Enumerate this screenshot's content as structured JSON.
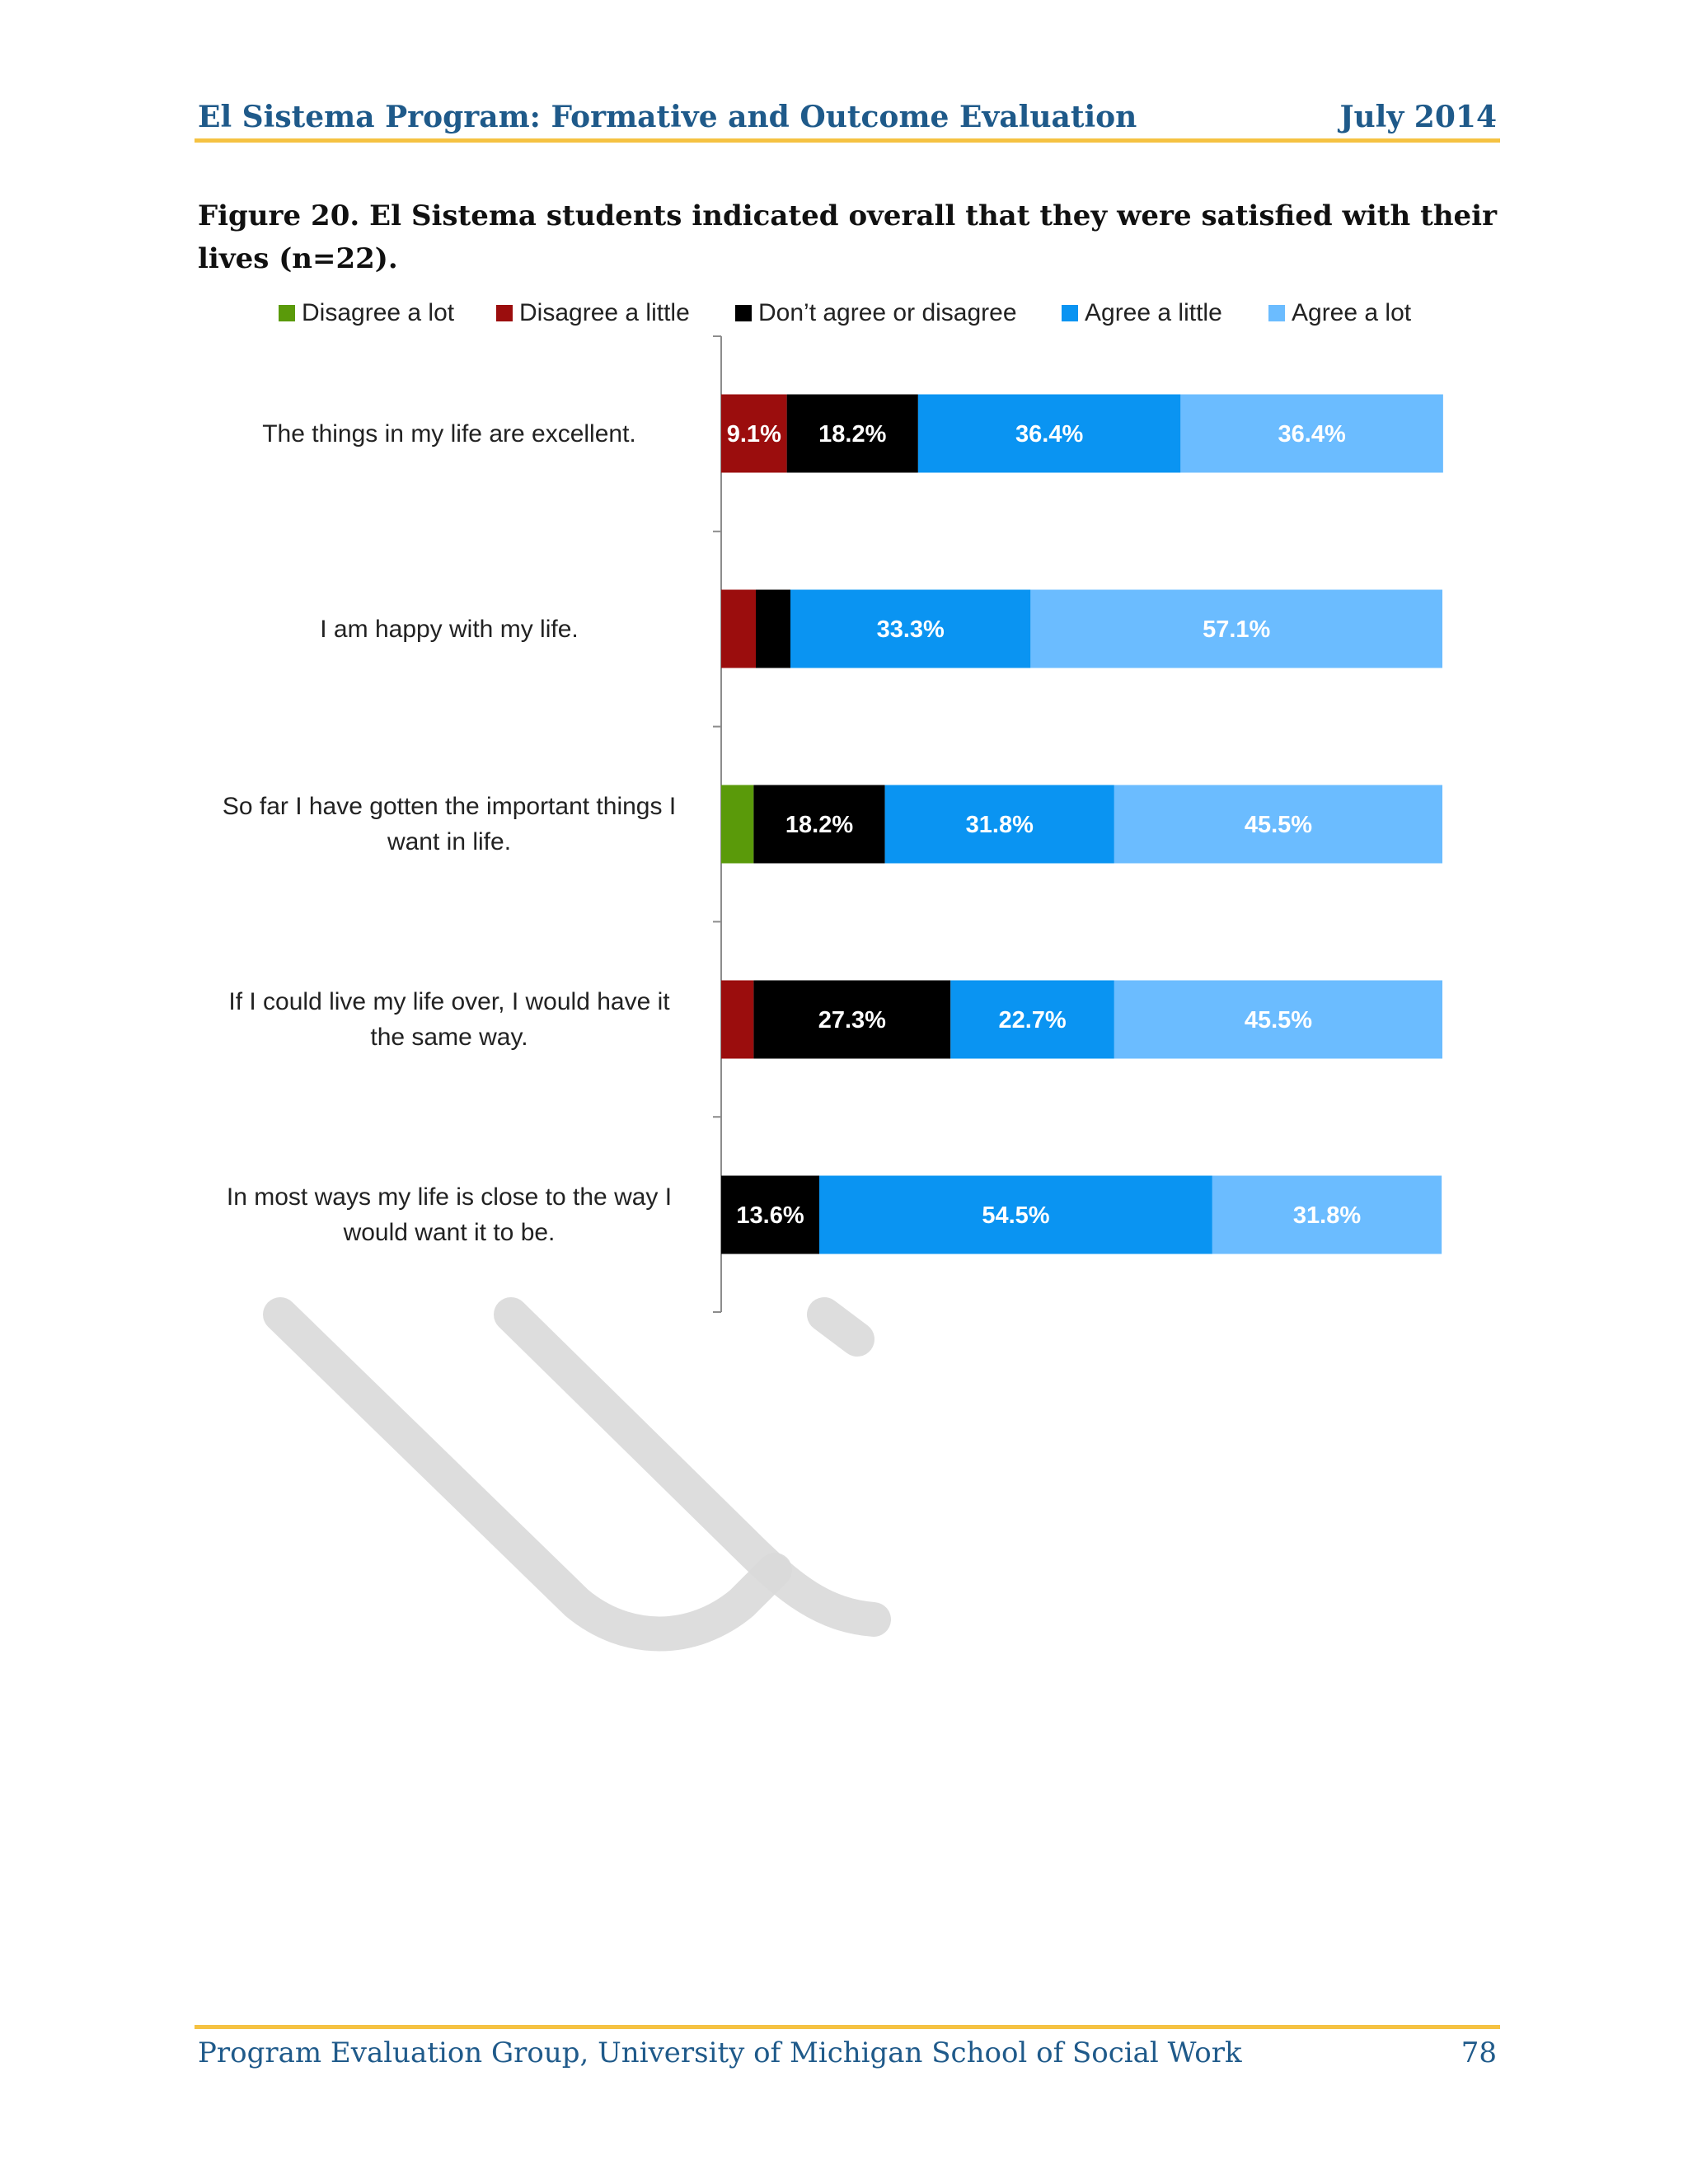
{
  "header": {
    "title": "El Sistema Program: Formative and Outcome Evaluation",
    "date": "July 2014"
  },
  "caption": "Figure 20. El Sistema students indicated overall that they were satisfied with their lives (n=22).",
  "footer": {
    "left": "Program Evaluation Group, University of Michigan School of Social Work",
    "page": "78"
  },
  "colors": {
    "header_text": "#1f5a8a",
    "rule": "#f5c242",
    "watermark": "#d9d9d9"
  },
  "chart_data": {
    "type": "bar",
    "orientation": "horizontal",
    "stacked": true,
    "categories": [
      "The things in my life are excellent.",
      "I am happy with my life.",
      "So far I have gotten the important things I\nwant in life.",
      "If I could live my life over, I would have it\nthe same way.",
      "In most ways my life is close to the way I\nwould want it to be."
    ],
    "series": [
      {
        "name": "Disagree a lot",
        "color": "#5a9a0a",
        "values": [
          0,
          0,
          4.5,
          0,
          0
        ],
        "labels": [
          "",
          "",
          "",
          "",
          ""
        ]
      },
      {
        "name": "Disagree a little",
        "color": "#9b0d0d",
        "values": [
          9.1,
          4.8,
          0,
          4.5,
          0
        ],
        "labels": [
          "9.1%",
          "",
          "",
          "",
          ""
        ]
      },
      {
        "name": "Don’t agree or disagree",
        "color": "#000000",
        "values": [
          18.2,
          4.8,
          18.2,
          27.3,
          13.6
        ],
        "labels": [
          "18.2%",
          "",
          "18.2%",
          "27.3%",
          "13.6%"
        ]
      },
      {
        "name": "Agree a little",
        "color": "#0a94f2",
        "values": [
          36.4,
          33.3,
          31.8,
          22.7,
          54.5
        ],
        "labels": [
          "36.4%",
          "33.3%",
          "31.8%",
          "22.7%",
          "54.5%"
        ]
      },
      {
        "name": "Agree a lot",
        "color": "#6bbcff",
        "values": [
          36.4,
          57.1,
          45.5,
          45.5,
          31.8
        ],
        "labels": [
          "36.4%",
          "57.1%",
          "45.5%",
          "45.5%",
          "31.8%"
        ]
      }
    ],
    "xlim": [
      0,
      100
    ],
    "legend_position": "top",
    "grid": false
  }
}
